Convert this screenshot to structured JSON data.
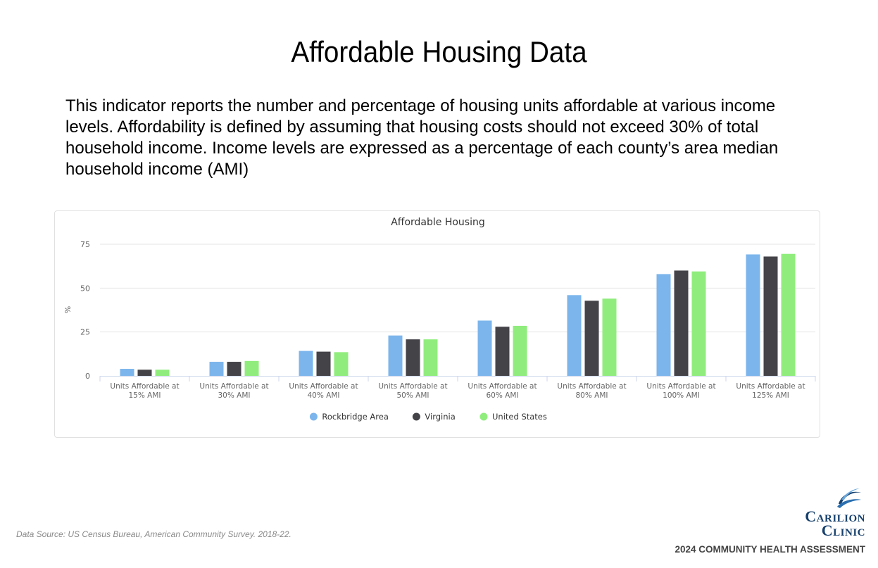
{
  "slide": {
    "title": "Affordable Housing Data",
    "description": "This indicator reports the number and percentage of housing units affordable at various income levels. Affordability is defined by assuming that housing costs should not exceed 30% of total household income. Income levels are expressed as a percentage of each county’s area median household income (AMI)",
    "source": "Data Source: US Census Bureau, American Community Survey. 2018-22.",
    "logo_line1": "Carilion",
    "logo_line2": "Clinic",
    "assessment": "2024 COMMUNITY HEALTH ASSESSMENT"
  },
  "chart_data": {
    "type": "bar",
    "title": "Affordable Housing",
    "ylabel": "%",
    "xlabel": "",
    "ylim": [
      0,
      75
    ],
    "yticks": [
      0,
      25,
      50,
      75
    ],
    "grid": true,
    "legend_position": "bottom-center",
    "categories": [
      [
        "Units Affordable at",
        "15% AMI"
      ],
      [
        "Units Affordable at",
        "30% AMI"
      ],
      [
        "Units Affordable at",
        "40% AMI"
      ],
      [
        "Units Affordable at",
        "50% AMI"
      ],
      [
        "Units Affordable at",
        "60% AMI"
      ],
      [
        "Units Affordable at",
        "80% AMI"
      ],
      [
        "Units Affordable at",
        "100% AMI"
      ],
      [
        "Units Affordable at",
        "125% AMI"
      ]
    ],
    "series": [
      {
        "name": "Rockbridge Area",
        "color": "#7cb5ec",
        "values": [
          4.0,
          8.0,
          14.2,
          23.0,
          31.5,
          46.0,
          58.0,
          69.2
        ]
      },
      {
        "name": "Virginia",
        "color": "#434348",
        "values": [
          3.5,
          8.0,
          13.8,
          20.8,
          28.0,
          42.8,
          60.0,
          68.0
        ]
      },
      {
        "name": "United States",
        "color": "#90ed7d",
        "values": [
          3.5,
          8.5,
          13.5,
          20.8,
          28.5,
          44.0,
          59.5,
          69.5
        ]
      }
    ]
  }
}
